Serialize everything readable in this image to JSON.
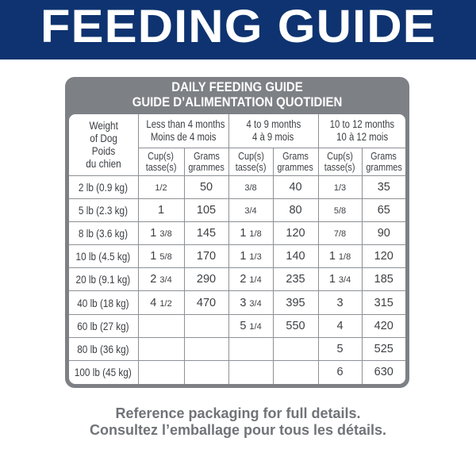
{
  "banner": {
    "title": "FEEDING GUIDE"
  },
  "card": {
    "title_en": "DAILY FEEDING GUIDE",
    "title_fr": "GUIDE D’ALIMENTATION QUOTIDIEN"
  },
  "table": {
    "weight_header": [
      "Weight",
      "of Dog",
      "Poids",
      "du chien"
    ],
    "age_groups": [
      {
        "en": "Less than 4 months",
        "fr": "Moins de 4 mois"
      },
      {
        "en": "4 to 9 months",
        "fr": "4 à 9 mois"
      },
      {
        "en": "10 to 12 months",
        "fr": "10 à 12 mois"
      }
    ],
    "unit_cups": [
      "Cup(s)",
      "tasse(s)"
    ],
    "unit_grams": [
      "Grams",
      "grammes"
    ],
    "rows": [
      {
        "weight": "2 lb (0.9 kg)",
        "cells": [
          [
            "",
            "1/2"
          ],
          [
            "50",
            ""
          ],
          [
            "",
            "3/8"
          ],
          [
            "40",
            ""
          ],
          [
            "",
            "1/3"
          ],
          [
            "35",
            ""
          ]
        ]
      },
      {
        "weight": "5 lb (2.3 kg)",
        "cells": [
          [
            "1",
            ""
          ],
          [
            "105",
            ""
          ],
          [
            "",
            "3/4"
          ],
          [
            "80",
            ""
          ],
          [
            "",
            "5/8"
          ],
          [
            "65",
            ""
          ]
        ]
      },
      {
        "weight": "8 lb (3.6 kg)",
        "cells": [
          [
            "1",
            "3/8"
          ],
          [
            "145",
            ""
          ],
          [
            "1",
            "1/8"
          ],
          [
            "120",
            ""
          ],
          [
            "",
            "7/8"
          ],
          [
            "90",
            ""
          ]
        ]
      },
      {
        "weight": "10 lb (4.5 kg)",
        "cells": [
          [
            "1",
            "5/8"
          ],
          [
            "170",
            ""
          ],
          [
            "1",
            "1/3"
          ],
          [
            "140",
            ""
          ],
          [
            "1",
            "1/8"
          ],
          [
            "120",
            ""
          ]
        ]
      },
      {
        "weight": "20 lb (9.1 kg)",
        "cells": [
          [
            "2",
            "3/4"
          ],
          [
            "290",
            ""
          ],
          [
            "2",
            "1/4"
          ],
          [
            "235",
            ""
          ],
          [
            "1",
            "3/4"
          ],
          [
            "185",
            ""
          ]
        ]
      },
      {
        "weight": "40 lb (18 kg)",
        "cells": [
          [
            "4",
            "1/2"
          ],
          [
            "470",
            ""
          ],
          [
            "3",
            "3/4"
          ],
          [
            "395",
            ""
          ],
          [
            "3",
            ""
          ],
          [
            "315",
            ""
          ]
        ]
      },
      {
        "weight": "60 lb (27 kg)",
        "cells": [
          [
            "",
            ""
          ],
          [
            "",
            ""
          ],
          [
            "5",
            "1/4"
          ],
          [
            "550",
            ""
          ],
          [
            "4",
            ""
          ],
          [
            "420",
            ""
          ]
        ]
      },
      {
        "weight": "80 lb (36 kg)",
        "cells": [
          [
            "",
            ""
          ],
          [
            "",
            ""
          ],
          [
            "",
            ""
          ],
          [
            "",
            ""
          ],
          [
            "5",
            ""
          ],
          [
            "525",
            ""
          ]
        ]
      },
      {
        "weight": "100 lb (45 kg)",
        "cells": [
          [
            "",
            ""
          ],
          [
            "",
            ""
          ],
          [
            "",
            ""
          ],
          [
            "",
            ""
          ],
          [
            "6",
            ""
          ],
          [
            "630",
            ""
          ]
        ]
      }
    ]
  },
  "footer": {
    "en": "Reference packaging for full details.",
    "fr": "Consultez l’emballage pour tous les détails."
  },
  "colors": {
    "banner": "#0e3370",
    "card": "#7d8085",
    "text": "#3d3f43",
    "footer": "#707378"
  }
}
